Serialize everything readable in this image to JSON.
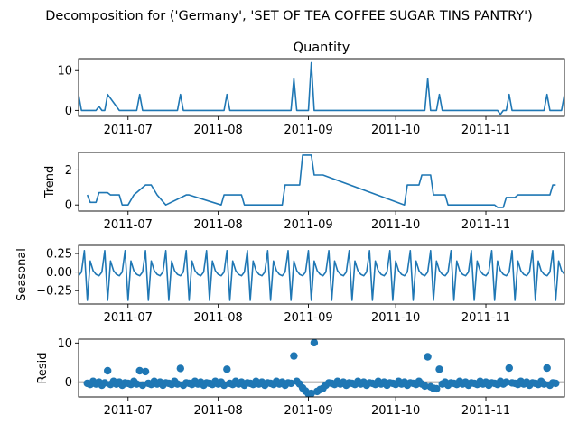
{
  "figure": {
    "suptitle": "Decomposition for ('Germany', 'SET OF TEA COFFEE SUGAR TINS PANTRY')"
  },
  "colors": {
    "series": "#1f77b4",
    "axis": "#000000"
  },
  "chart_data": [
    {
      "type": "line",
      "title": "Quantity",
      "ylabel": "",
      "xlim": [
        "2011-06-14",
        "2011-11-28"
      ],
      "ylim": [
        -1.5,
        13
      ],
      "yticks": [
        0,
        10
      ],
      "xticks": [
        "2011-07",
        "2011-08",
        "2011-09",
        "2011-10",
        "2011-11"
      ],
      "grid": false,
      "series": [
        {
          "x": [
            "2011-06-14",
            "2011-06-15",
            "2011-06-16",
            "2011-06-20",
            "2011-06-21",
            "2011-06-22",
            "2011-06-23",
            "2011-06-24",
            "2011-06-28",
            "2011-07-04",
            "2011-07-05",
            "2011-07-06",
            "2011-07-07",
            "2011-07-18",
            "2011-07-19",
            "2011-07-20",
            "2011-08-03",
            "2011-08-04",
            "2011-08-05",
            "2011-08-26",
            "2011-08-27",
            "2011-08-28",
            "2011-09-01",
            "2011-09-02",
            "2011-09-03",
            "2011-10-11",
            "2011-10-12",
            "2011-10-13",
            "2011-10-15",
            "2011-10-16",
            "2011-10-17",
            "2011-11-05",
            "2011-11-06",
            "2011-11-07",
            "2011-11-08",
            "2011-11-09",
            "2011-11-10",
            "2011-11-11",
            "2011-11-21",
            "2011-11-22",
            "2011-11-23",
            "2011-11-27",
            "2011-11-28"
          ],
          "y": [
            4,
            0,
            0,
            0,
            1,
            0,
            0,
            4,
            0,
            0,
            4,
            0,
            0,
            0,
            4,
            0,
            0,
            4,
            0,
            0,
            8,
            0,
            0,
            12,
            0,
            0,
            8,
            0,
            0,
            4,
            0,
            0,
            -1,
            0,
            0,
            4,
            0,
            0,
            0,
            4,
            0,
            0,
            4
          ]
        }
      ]
    },
    {
      "type": "line",
      "title": "",
      "ylabel": "Trend",
      "xlim": [
        "2011-06-14",
        "2011-11-28"
      ],
      "ylim": [
        -0.35,
        3.0
      ],
      "yticks": [
        0,
        2
      ],
      "xticks": [
        "2011-07",
        "2011-08",
        "2011-09",
        "2011-10",
        "2011-11"
      ],
      "grid": false,
      "series": [
        {
          "x": [
            "2011-06-17",
            "2011-06-18",
            "2011-06-20",
            "2011-06-21",
            "2011-06-24",
            "2011-06-25",
            "2011-06-28",
            "2011-06-29",
            "2011-07-01",
            "2011-07-03",
            "2011-07-07",
            "2011-07-09",
            "2011-07-11",
            "2011-07-14",
            "2011-07-21",
            "2011-07-22",
            "2011-08-02",
            "2011-08-03",
            "2011-08-09",
            "2011-08-10",
            "2011-08-23",
            "2011-08-24",
            "2011-08-29",
            "2011-08-30",
            "2011-09-02",
            "2011-09-03",
            "2011-09-06",
            "2011-10-04",
            "2011-10-05",
            "2011-10-09",
            "2011-10-10",
            "2011-10-13",
            "2011-10-14",
            "2011-10-18",
            "2011-10-19",
            "2011-11-04",
            "2011-11-05",
            "2011-11-07",
            "2011-11-08",
            "2011-11-11",
            "2011-11-12",
            "2011-11-15",
            "2011-11-16",
            "2011-11-23",
            "2011-11-24",
            "2011-11-25"
          ],
          "y": [
            0.57,
            0.15,
            0.15,
            0.7,
            0.7,
            0.57,
            0.57,
            0,
            0,
            0.57,
            1.14,
            1.14,
            0.57,
            0,
            0.57,
            0.57,
            0,
            0.57,
            0.57,
            0,
            0,
            1.14,
            1.14,
            2.85,
            2.85,
            1.71,
            1.71,
            0,
            1.14,
            1.14,
            1.71,
            1.71,
            0.57,
            0.57,
            0,
            0,
            -0.14,
            -0.14,
            0.43,
            0.43,
            0.57,
            0.57,
            0.57,
            0.57,
            1.14,
            1.14
          ]
        }
      ]
    },
    {
      "type": "line",
      "title": "",
      "ylabel": "Seasonal",
      "xlim": [
        "2011-06-14",
        "2011-11-28"
      ],
      "ylim": [
        -0.43,
        0.36
      ],
      "yticks": [
        -0.25,
        0.0,
        0.25
      ],
      "ytick_labels": [
        "−0.25",
        "0.00",
        "0.25"
      ],
      "xticks": [
        "2011-07",
        "2011-08",
        "2011-09",
        "2011-10",
        "2011-11"
      ],
      "grid": false,
      "period": 7,
      "pattern": [
        -0.05,
        0.0,
        0.29,
        -0.38,
        0.15,
        0.02,
        -0.03
      ],
      "start": "2011-06-14",
      "end": "2011-11-28"
    },
    {
      "type": "scatter",
      "title": "",
      "ylabel": "Resid",
      "xlim": [
        "2011-06-14",
        "2011-11-28"
      ],
      "ylim": [
        -3.8,
        11.0
      ],
      "yticks": [
        0,
        10
      ],
      "xticks": [
        "2011-07",
        "2011-08",
        "2011-09",
        "2011-10",
        "2011-11"
      ],
      "grid": false,
      "baseline": 0,
      "start": "2011-06-17",
      "end": "2011-11-25",
      "pattern": [
        -0.3,
        -0.6,
        0.2,
        -0.5,
        0.0,
        -0.8,
        -0.2
      ],
      "outliers": {
        "2011-06-24": 2.9,
        "2011-07-05": 2.9,
        "2011-07-07": 2.7,
        "2011-07-19": 3.5,
        "2011-08-04": 3.3,
        "2011-08-27": 6.7,
        "2011-08-30": -1.5,
        "2011-08-31": -2.3,
        "2011-09-01": -3.0,
        "2011-09-02": -2.9,
        "2011-09-03": 10.1,
        "2011-09-04": -2.4,
        "2011-09-05": -1.9,
        "2011-09-06": -1.6,
        "2011-10-11": -1.0,
        "2011-10-12": 6.5,
        "2011-10-13": -1.2,
        "2011-10-14": -1.6,
        "2011-10-15": -1.7,
        "2011-10-16": 3.3,
        "2011-11-09": 3.6,
        "2011-11-22": 3.6
      }
    }
  ]
}
